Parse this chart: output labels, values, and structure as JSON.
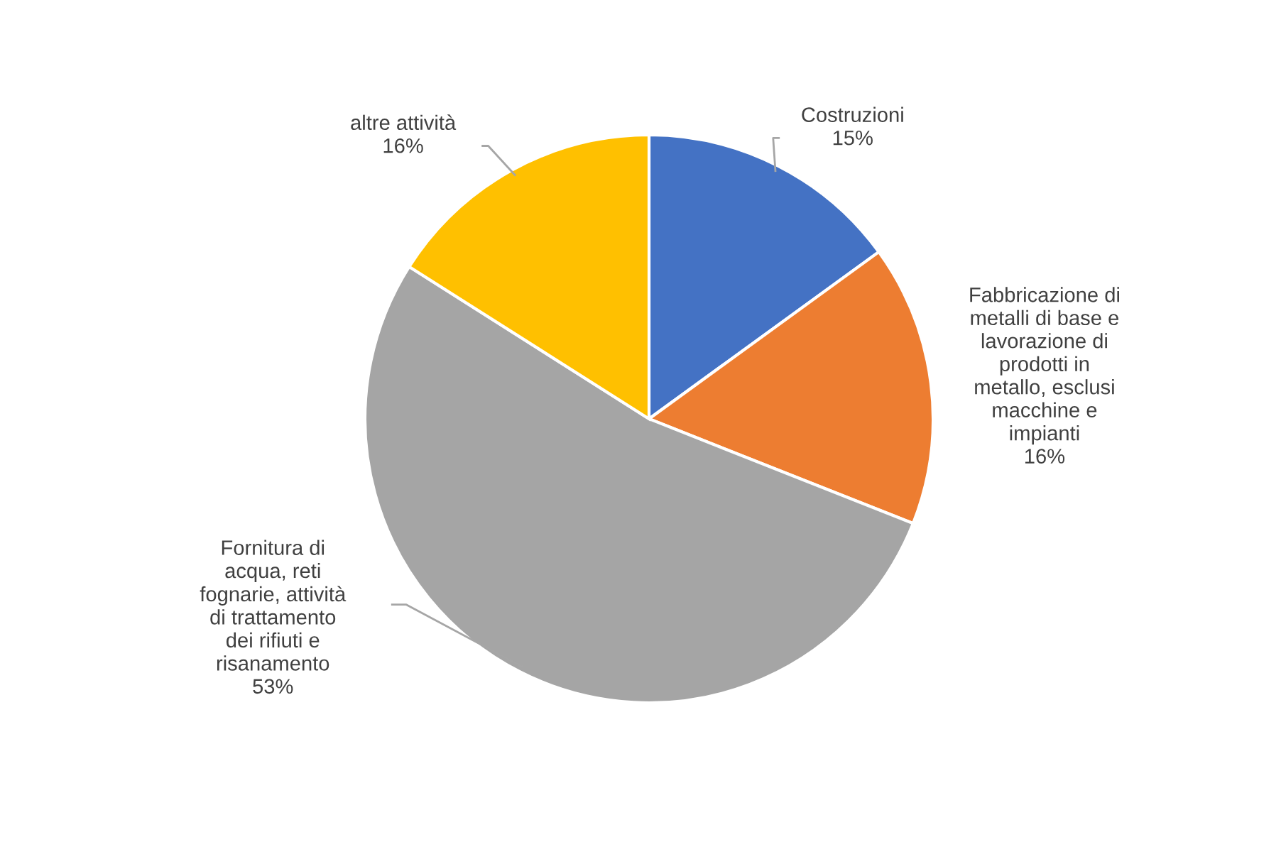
{
  "chart_data": {
    "type": "pie",
    "categories": [
      "Costruzioni",
      "Fabbricazione di\nmetalli di base e\nlavorazione di\nprodotti in\nmetallo, esclusi\nmacchine e\nimpianti",
      "Fornitura di\nacqua, reti\nfognarie, attività\ndi trattamento\ndei rifiuti e\nrisanamento",
      "altre attività"
    ],
    "values": [
      15,
      16,
      53,
      16
    ],
    "value_labels": [
      "15%",
      "16%",
      "53%",
      "16%"
    ],
    "colors": [
      "#4472c4",
      "#ed7d31",
      "#a5a5a5",
      "#ffc000"
    ],
    "legend": false
  }
}
